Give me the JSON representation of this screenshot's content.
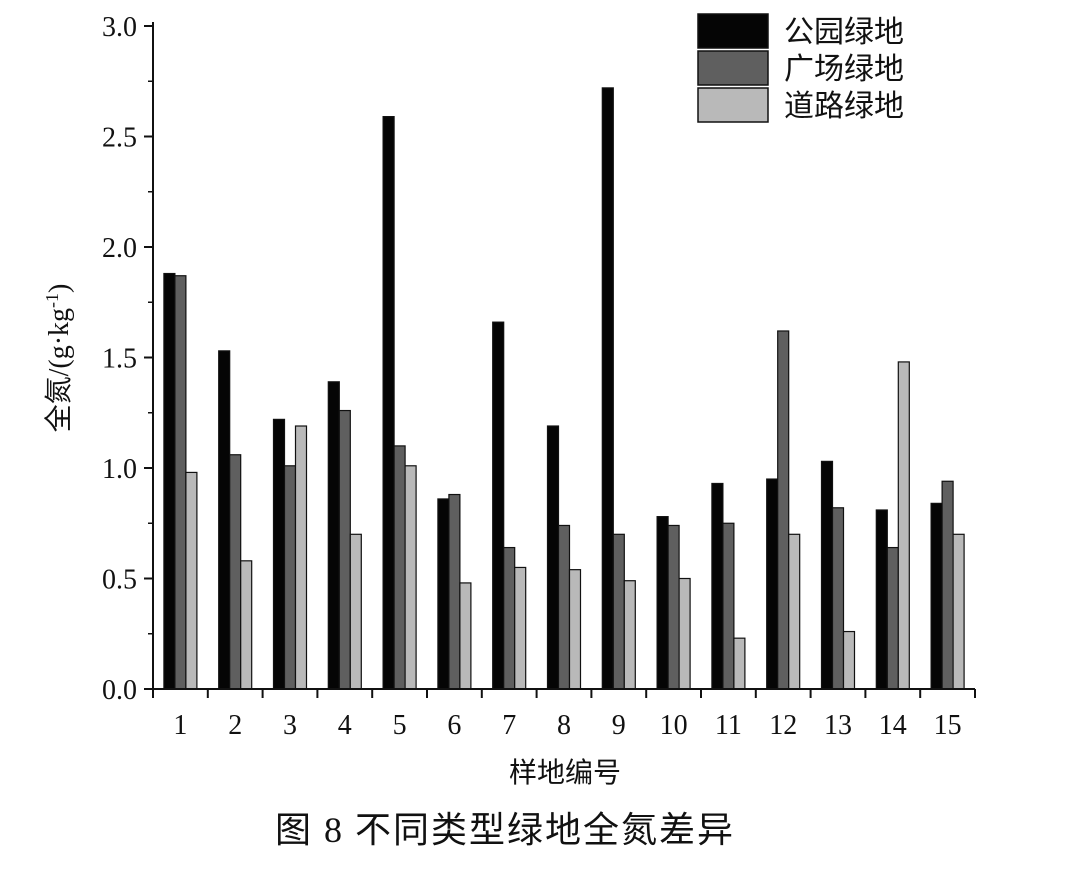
{
  "figure": {
    "caption": "图 8   不同类型绿地全氮差异"
  },
  "chart_data": {
    "type": "bar",
    "xlabel": "样地编号",
    "ylabel": "全氮/(g·kg⁻¹)",
    "ylim": [
      0,
      3.0
    ],
    "yticks": [
      0.0,
      0.5,
      1.0,
      1.5,
      2.0,
      2.5,
      3.0
    ],
    "ytick_labels": [
      "0.0",
      "0.5",
      "1.0",
      "1.5",
      "2.0",
      "2.5",
      "3.0"
    ],
    "categories": [
      "1",
      "2",
      "3",
      "4",
      "5",
      "6",
      "7",
      "8",
      "9",
      "10",
      "11",
      "12",
      "13",
      "14",
      "15"
    ],
    "legend_position": "top-right",
    "grid": false,
    "series": [
      {
        "name": "公园绿地",
        "color": "#050505",
        "values": [
          1.88,
          1.53,
          1.22,
          1.39,
          2.59,
          0.86,
          1.66,
          1.19,
          2.72,
          0.78,
          0.93,
          0.95,
          1.03,
          0.81,
          0.84
        ]
      },
      {
        "name": "广场绿地",
        "color": "#5f5f5f",
        "values": [
          1.87,
          1.06,
          1.01,
          1.26,
          1.1,
          0.88,
          0.64,
          0.74,
          0.7,
          0.74,
          0.75,
          1.62,
          0.82,
          0.64,
          0.94
        ]
      },
      {
        "name": "道路绿地",
        "color": "#b9b9b9",
        "values": [
          0.98,
          0.58,
          1.19,
          0.7,
          1.01,
          0.48,
          0.55,
          0.54,
          0.49,
          0.5,
          0.23,
          0.7,
          0.26,
          1.48,
          0.7
        ]
      }
    ]
  }
}
